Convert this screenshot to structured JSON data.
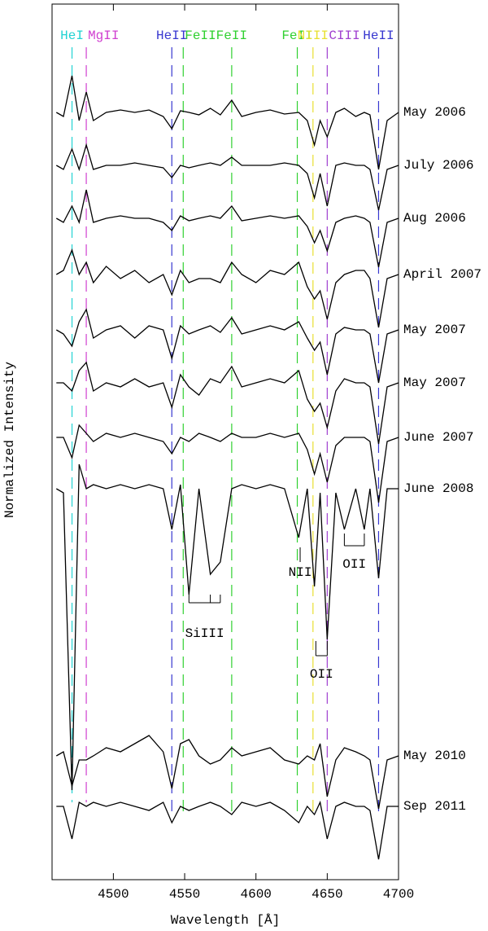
{
  "chart_data": {
    "type": "line",
    "x_label": "Wavelength [Å]",
    "y_label": "Normalized Intensity",
    "xlim": [
      4457,
      4700
    ],
    "xticks": [
      4500,
      4550,
      4600,
      4650,
      4700
    ],
    "ylim": [
      0,
      10.75
    ],
    "x": [
      4460,
      4465,
      4471,
      4476,
      4481,
      4486,
      4495,
      4505,
      4515,
      4525,
      4535,
      4541,
      4547,
      4553,
      4560,
      4568,
      4575,
      4583,
      4590,
      4600,
      4610,
      4620,
      4630,
      4636,
      4641,
      4645,
      4650,
      4656,
      4662,
      4670,
      4676,
      4680,
      4686,
      4692,
      4700
    ],
    "series": [
      {
        "name": "May  2006",
        "color": "#000000",
        "values": [
          9.42,
          9.37,
          9.87,
          9.32,
          9.67,
          9.32,
          9.42,
          9.45,
          9.42,
          9.45,
          9.37,
          9.22,
          9.44,
          9.42,
          9.39,
          9.47,
          9.39,
          9.57,
          9.37,
          9.42,
          9.45,
          9.4,
          9.42,
          9.32,
          9.02,
          9.32,
          9.12,
          9.42,
          9.47,
          9.37,
          9.42,
          9.39,
          8.72,
          9.32,
          9.42
        ]
      },
      {
        "name": "July  2006",
        "color": "#000000",
        "values": [
          8.77,
          8.72,
          8.97,
          8.72,
          9.02,
          8.72,
          8.77,
          8.77,
          8.8,
          8.77,
          8.74,
          8.62,
          8.77,
          8.74,
          8.77,
          8.8,
          8.77,
          8.87,
          8.77,
          8.77,
          8.77,
          8.8,
          8.77,
          8.67,
          8.37,
          8.67,
          8.27,
          8.77,
          8.8,
          8.77,
          8.77,
          8.72,
          8.22,
          8.72,
          8.77
        ]
      },
      {
        "name": "Aug  2006",
        "color": "#000000",
        "values": [
          8.12,
          8.07,
          8.27,
          8.07,
          8.47,
          8.07,
          8.12,
          8.15,
          8.12,
          8.12,
          8.07,
          7.97,
          8.15,
          8.09,
          8.12,
          8.15,
          8.12,
          8.27,
          8.09,
          8.12,
          8.15,
          8.12,
          8.15,
          8.02,
          7.82,
          7.97,
          7.72,
          8.07,
          8.12,
          8.15,
          8.12,
          8.07,
          7.52,
          8.07,
          8.12
        ]
      },
      {
        "name": "April  2007",
        "color": "#000000",
        "values": [
          7.43,
          7.48,
          7.73,
          7.43,
          7.58,
          7.33,
          7.53,
          7.38,
          7.48,
          7.33,
          7.43,
          7.18,
          7.48,
          7.33,
          7.38,
          7.38,
          7.33,
          7.58,
          7.43,
          7.33,
          7.48,
          7.43,
          7.58,
          7.28,
          7.13,
          7.23,
          6.88,
          7.33,
          7.43,
          7.48,
          7.48,
          7.38,
          6.78,
          7.38,
          7.43
        ]
      },
      {
        "name": "May  2007",
        "color": "#000000",
        "values": [
          6.75,
          6.7,
          6.55,
          6.85,
          7.0,
          6.65,
          6.75,
          6.8,
          6.65,
          6.8,
          6.75,
          6.4,
          6.8,
          6.7,
          6.75,
          6.8,
          6.72,
          6.9,
          6.7,
          6.75,
          6.8,
          6.75,
          6.85,
          6.65,
          6.5,
          6.6,
          6.2,
          6.7,
          6.78,
          6.75,
          6.75,
          6.7,
          6.1,
          6.7,
          6.75
        ]
      },
      {
        "name": "May  2007",
        "color": "#000000",
        "values": [
          6.1,
          6.1,
          6.0,
          6.25,
          6.35,
          6.0,
          6.1,
          6.05,
          6.15,
          6.05,
          6.1,
          5.8,
          6.2,
          6.05,
          5.95,
          6.15,
          6.1,
          6.3,
          6.05,
          6.1,
          6.15,
          6.1,
          6.25,
          5.9,
          5.75,
          5.85,
          5.55,
          6.0,
          6.15,
          6.1,
          6.1,
          6.05,
          5.35,
          6.05,
          6.1
        ]
      },
      {
        "name": "June  2007",
        "color": "#000000",
        "values": [
          5.43,
          5.43,
          5.18,
          5.58,
          5.48,
          5.38,
          5.48,
          5.43,
          5.48,
          5.43,
          5.38,
          5.23,
          5.43,
          5.38,
          5.48,
          5.43,
          5.38,
          5.48,
          5.43,
          5.43,
          5.48,
          5.43,
          5.48,
          5.28,
          4.98,
          5.23,
          4.88,
          5.33,
          5.43,
          5.43,
          5.43,
          5.38,
          4.63,
          5.38,
          5.43
        ]
      },
      {
        "name": "June  2008",
        "color": "#000000",
        "values": [
          4.8,
          4.75,
          1.1,
          5.1,
          4.8,
          4.85,
          4.8,
          4.85,
          4.8,
          4.85,
          4.8,
          4.3,
          4.85,
          3.5,
          4.8,
          3.75,
          3.9,
          4.8,
          4.85,
          4.8,
          4.85,
          4.8,
          4.2,
          4.8,
          3.6,
          4.75,
          2.95,
          4.75,
          4.3,
          4.8,
          4.3,
          4.8,
          3.7,
          4.8,
          4.8
        ]
      },
      {
        "name": "May  2010",
        "color": "#000000",
        "values": [
          1.52,
          1.57,
          1.15,
          1.47,
          1.47,
          1.52,
          1.62,
          1.57,
          1.67,
          1.77,
          1.57,
          1.12,
          1.67,
          1.72,
          1.52,
          1.42,
          1.47,
          1.62,
          1.52,
          1.57,
          1.62,
          1.47,
          1.42,
          1.52,
          1.47,
          1.67,
          1.02,
          1.47,
          1.62,
          1.57,
          1.52,
          1.47,
          0.87,
          1.47,
          1.52
        ]
      },
      {
        "name": "Sep  2011",
        "color": "#000000",
        "values": [
          0.9,
          0.9,
          0.5,
          0.95,
          0.9,
          0.95,
          0.9,
          0.95,
          0.9,
          0.85,
          0.95,
          0.7,
          0.9,
          0.85,
          0.9,
          0.95,
          0.9,
          0.8,
          0.95,
          0.9,
          0.95,
          0.85,
          0.7,
          0.9,
          0.8,
          0.95,
          0.5,
          0.9,
          0.95,
          0.9,
          0.9,
          0.85,
          0.25,
          0.9,
          0.9
        ]
      }
    ],
    "line_markers": [
      {
        "label": "HeI",
        "x": 4471,
        "color": "#22d3d3"
      },
      {
        "label": "MgII",
        "x": 4481,
        "color": "#d040d0"
      },
      {
        "label": "HeII",
        "x": 4541,
        "color": "#3838d0"
      },
      {
        "label": "FeII",
        "x": 4549,
        "color": "#30d030"
      },
      {
        "label": "FeII",
        "x": 4583,
        "color": "#30d030"
      },
      {
        "label": "FeII",
        "x": 4629,
        "color": "#30d030"
      },
      {
        "label": "NIII",
        "x": 4640,
        "color": "#e8e030"
      },
      {
        "label": "CIII",
        "x": 4650,
        "color": "#a040d0"
      },
      {
        "label": "HeII",
        "x": 4686,
        "color": "#3838d0"
      }
    ],
    "annotations": [
      {
        "label": "SiIII",
        "x": [
          4553,
          4568,
          4575
        ]
      },
      {
        "label": "NII",
        "x": [
          4631
        ]
      },
      {
        "label": "OII",
        "x": [
          4642,
          4650
        ]
      },
      {
        "label": "OII",
        "x": [
          4662,
          4676
        ]
      }
    ]
  }
}
